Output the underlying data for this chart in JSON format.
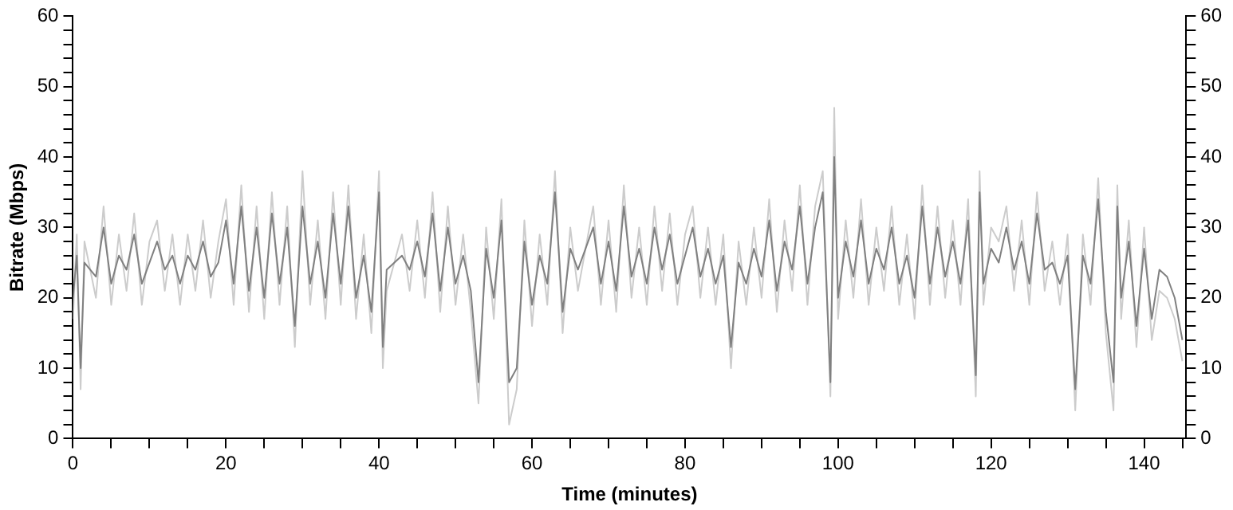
{
  "chart_data": {
    "type": "line",
    "xlabel": "Time (minutes)",
    "ylabel": "Bitrate (Mbps)",
    "xlim": [
      0,
      145.5
    ],
    "xticks": [
      0,
      {
        "value": 5,
        "label": null
      },
      {
        "value": 10,
        "label": null
      },
      {
        "value": 15,
        "label": null
      },
      20,
      {
        "value": 25,
        "label": null
      },
      {
        "value": 30,
        "label": null
      },
      {
        "value": 35,
        "label": null
      },
      40,
      {
        "value": 45,
        "label": null
      },
      {
        "value": 50,
        "label": null
      },
      {
        "value": 55,
        "label": null
      },
      60,
      {
        "value": 65,
        "label": null
      },
      {
        "value": 70,
        "label": null
      },
      {
        "value": 75,
        "label": null
      },
      80,
      {
        "value": 85,
        "label": null
      },
      {
        "value": 90,
        "label": null
      },
      {
        "value": 95,
        "label": null
      },
      100,
      {
        "value": 105,
        "label": null
      },
      {
        "value": 110,
        "label": null
      },
      {
        "value": 115,
        "label": null
      },
      120,
      {
        "value": 125,
        "label": null
      },
      {
        "value": 130,
        "label": null
      },
      {
        "value": 135,
        "label": null
      },
      140,
      {
        "value": 145,
        "label": null
      }
    ],
    "ylim": [
      0,
      60
    ],
    "yticks": [
      0,
      {
        "value": 2,
        "label": null
      },
      {
        "value": 4,
        "label": null
      },
      {
        "value": 6,
        "label": null
      },
      {
        "value": 8,
        "label": null
      },
      10,
      {
        "value": 12,
        "label": null
      },
      {
        "value": 14,
        "label": null
      },
      {
        "value": 16,
        "label": null
      },
      {
        "value": 18,
        "label": null
      },
      20,
      {
        "value": 22,
        "label": null
      },
      {
        "value": 24,
        "label": null
      },
      {
        "value": 26,
        "label": null
      },
      {
        "value": 28,
        "label": null
      },
      30,
      {
        "value": 32,
        "label": null
      },
      {
        "value": 34,
        "label": null
      },
      {
        "value": 36,
        "label": null
      },
      {
        "value": 38,
        "label": null
      },
      40,
      {
        "value": 42,
        "label": null
      },
      {
        "value": 44,
        "label": null
      },
      {
        "value": 46,
        "label": null
      },
      {
        "value": 48,
        "label": null
      },
      50,
      {
        "value": 52,
        "label": null
      },
      {
        "value": 54,
        "label": null
      },
      {
        "value": 56,
        "label": null
      },
      {
        "value": 58,
        "label": null
      },
      60
    ],
    "y2lim": [
      0,
      60
    ],
    "y2ticks": [
      0,
      {
        "value": 2,
        "label": null
      },
      {
        "value": 4,
        "label": null
      },
      {
        "value": 6,
        "label": null
      },
      {
        "value": 8,
        "label": null
      },
      10,
      {
        "value": 12,
        "label": null
      },
      {
        "value": 14,
        "label": null
      },
      {
        "value": 16,
        "label": null
      },
      {
        "value": 18,
        "label": null
      },
      20,
      {
        "value": 22,
        "label": null
      },
      {
        "value": 24,
        "label": null
      },
      {
        "value": 26,
        "label": null
      },
      {
        "value": 28,
        "label": null
      },
      30,
      {
        "value": 32,
        "label": null
      },
      {
        "value": 34,
        "label": null
      },
      {
        "value": 36,
        "label": null
      },
      {
        "value": 38,
        "label": null
      },
      40,
      {
        "value": 42,
        "label": null
      },
      {
        "value": 44,
        "label": null
      },
      {
        "value": 46,
        "label": null
      },
      {
        "value": 48,
        "label": null
      },
      50,
      {
        "value": 52,
        "label": null
      },
      {
        "value": 54,
        "label": null
      },
      {
        "value": 56,
        "label": null
      },
      {
        "value": 58,
        "label": null
      },
      60
    ],
    "x": [
      0,
      0.5,
      1,
      1.5,
      3,
      4,
      5,
      6,
      7,
      8,
      9,
      10,
      11,
      12,
      13,
      14,
      15,
      16,
      17,
      18,
      19,
      20,
      21,
      22,
      23,
      24,
      25,
      26,
      27,
      28,
      29,
      30,
      31,
      32,
      33,
      34,
      35,
      36,
      37,
      38,
      39,
      40,
      40.5,
      41,
      43,
      44,
      45,
      46,
      47,
      48,
      49,
      50,
      51,
      52,
      53,
      54,
      55,
      56,
      57,
      58,
      59,
      60,
      61,
      62,
      63,
      64,
      65,
      66,
      68,
      69,
      70,
      71,
      72,
      73,
      74,
      75,
      76,
      77,
      78,
      79,
      80,
      81,
      82,
      83,
      84,
      85,
      86,
      87,
      88,
      89,
      90,
      91,
      92,
      93,
      94,
      95,
      96,
      97,
      98,
      99,
      99.5,
      100,
      101,
      102,
      103,
      104,
      105,
      106,
      107,
      108,
      109,
      110,
      111,
      112,
      113,
      114,
      115,
      116,
      117,
      118,
      118.5,
      119,
      120,
      121,
      122,
      123,
      124,
      125,
      126,
      127,
      128,
      129,
      130,
      131,
      132,
      133,
      134,
      135,
      136,
      136.5,
      137,
      138,
      139,
      140,
      141,
      142,
      143,
      144,
      145
    ],
    "series": [
      {
        "color": "#cccccc",
        "values": [
          17,
          29,
          7,
          28,
          20,
          33,
          19,
          29,
          21,
          32,
          19,
          28,
          31,
          21,
          29,
          19,
          29,
          21,
          31,
          20,
          28,
          34,
          19,
          36,
          18,
          33,
          17,
          35,
          19,
          33,
          13,
          38,
          19,
          31,
          17,
          35,
          19,
          36,
          17,
          29,
          15,
          38,
          10,
          21,
          29,
          21,
          31,
          20,
          35,
          18,
          33,
          19,
          29,
          18,
          5,
          30,
          17,
          34,
          2,
          7,
          31,
          16,
          29,
          19,
          38,
          15,
          30,
          21,
          33,
          19,
          31,
          18,
          36,
          20,
          30,
          19,
          33,
          21,
          32,
          19,
          29,
          33,
          20,
          30,
          19,
          29,
          10,
          28,
          19,
          30,
          20,
          34,
          18,
          31,
          21,
          36,
          19,
          33,
          38,
          6,
          47,
          17,
          31,
          20,
          34,
          19,
          30,
          21,
          33,
          19,
          29,
          17,
          36,
          19,
          33,
          20,
          31,
          19,
          34,
          6,
          38,
          19,
          30,
          28,
          33,
          21,
          31,
          19,
          35,
          21,
          28,
          19,
          29,
          4,
          29,
          19,
          37,
          15,
          4,
          36,
          17,
          31,
          13,
          30,
          14,
          21,
          20,
          17,
          11
        ]
      },
      {
        "color": "#808080",
        "values": [
          20,
          26,
          10,
          25,
          23,
          30,
          22,
          26,
          24,
          29,
          22,
          25,
          28,
          24,
          26,
          22,
          26,
          24,
          28,
          23,
          25,
          31,
          22,
          33,
          21,
          30,
          20,
          32,
          22,
          30,
          16,
          33,
          22,
          28,
          20,
          32,
          22,
          33,
          20,
          26,
          18,
          35,
          13,
          24,
          26,
          24,
          28,
          23,
          32,
          21,
          30,
          22,
          26,
          21,
          8,
          27,
          20,
          31,
          8,
          10,
          28,
          19,
          26,
          22,
          35,
          18,
          27,
          24,
          30,
          22,
          28,
          21,
          33,
          23,
          27,
          22,
          30,
          24,
          29,
          22,
          26,
          30,
          23,
          27,
          22,
          26,
          13,
          25,
          22,
          27,
          23,
          31,
          21,
          28,
          24,
          33,
          22,
          30,
          35,
          8,
          40,
          20,
          28,
          23,
          31,
          22,
          27,
          24,
          30,
          22,
          26,
          20,
          33,
          22,
          30,
          23,
          28,
          22,
          31,
          9,
          35,
          22,
          27,
          25,
          30,
          24,
          28,
          22,
          32,
          24,
          25,
          22,
          26,
          7,
          26,
          22,
          34,
          18,
          8,
          33,
          20,
          28,
          16,
          27,
          17,
          24,
          23,
          20,
          14
        ]
      }
    ]
  }
}
